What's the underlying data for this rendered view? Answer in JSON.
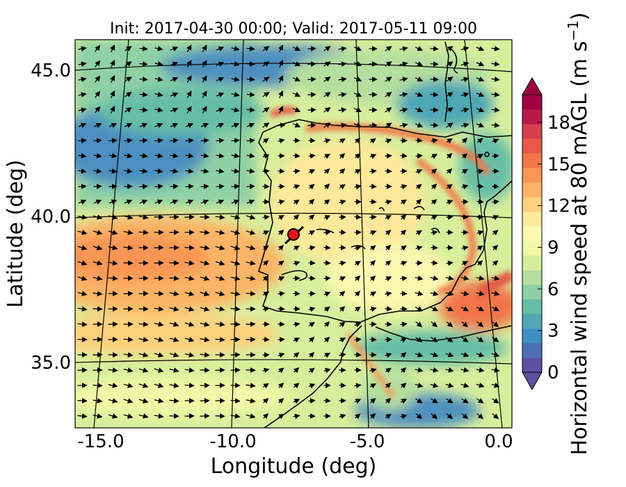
{
  "map": {
    "title": "Init: 2017-04-30 00:00; Valid: 2017-05-11 09:00",
    "xlabel": "Longitude (deg)",
    "ylabel": "Latitude (deg)",
    "x_ticks": [
      "-15.0",
      "-10.0",
      "-5.0",
      "0.0"
    ],
    "y_ticks": [
      "45.0",
      "40.0",
      "35.0"
    ],
    "colorbar": {
      "label": "Horizontal wind speed at 80 mAGL (m s",
      "label_exp": "−1",
      "label_close": ")",
      "ticks": [
        "0",
        "3",
        "6",
        "9",
        "12",
        "15",
        "18"
      ],
      "range": [
        0,
        20
      ],
      "colors": [
        "#5e4fa2",
        "#4d6fb4",
        "#3f8fc0",
        "#4fa7b5",
        "#66bda6",
        "#8fd0a4",
        "#b5df9f",
        "#d6ee9b",
        "#eef8a6",
        "#fbf8b0",
        "#fee89a",
        "#fed07e",
        "#fdb466",
        "#f99655",
        "#f27649",
        "#e45a47",
        "#d43f4e",
        "#b81b4a",
        "#9e0142"
      ]
    },
    "marker": {
      "name": "site",
      "lon": -7.6,
      "lat": 39.3,
      "color": "#ee1111"
    }
  }
}
